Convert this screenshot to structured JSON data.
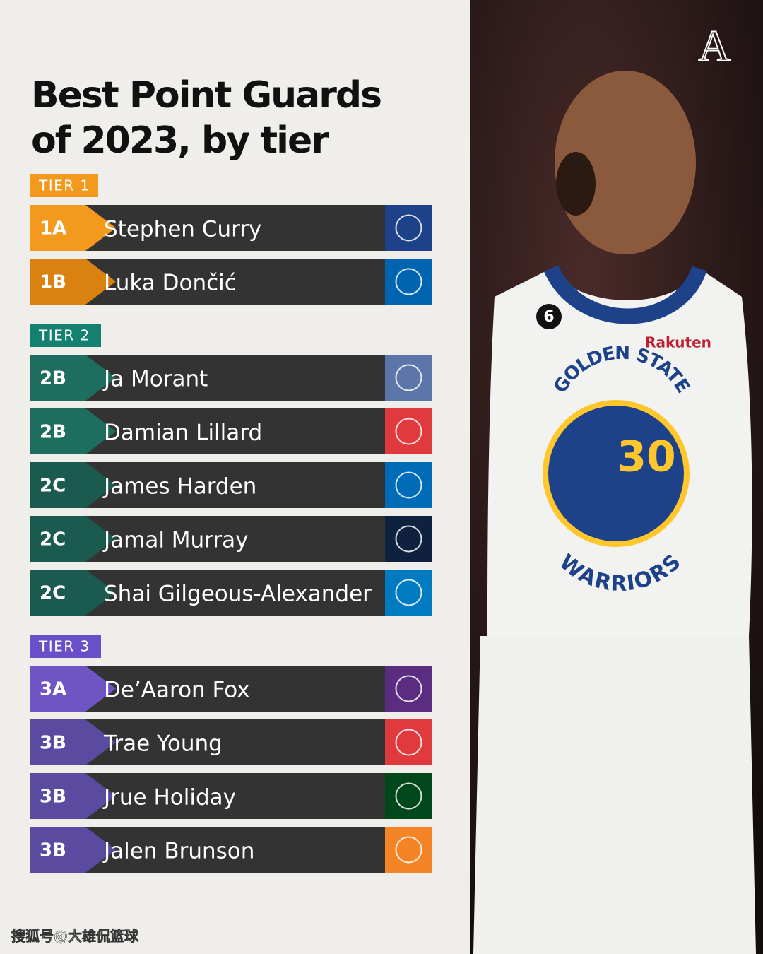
{
  "title_lines": [
    "Best Point Guards",
    "of 2023, by tier"
  ],
  "brand": "A",
  "tiers": [
    {
      "label": "TIER 1",
      "color": "#f39a1e",
      "rows": [
        {
          "rank": "1A",
          "name": "Stephen Curry",
          "rank_color": "#f39a1e",
          "logo_color": "#1d428a"
        },
        {
          "rank": "1B",
          "name": "Luka Dončić",
          "rank_color": "#d9820f",
          "logo_color": "#0064b1"
        }
      ]
    },
    {
      "label": "TIER 2",
      "color": "#14806f",
      "rows": [
        {
          "rank": "2B",
          "name": "Ja Morant",
          "rank_color": "#1e6e5f",
          "logo_color": "#5d76a9"
        },
        {
          "rank": "2B",
          "name": "Damian Lillard",
          "rank_color": "#1e6e5f",
          "logo_color": "#e03a3e"
        },
        {
          "rank": "2C",
          "name": "James Harden",
          "rank_color": "#1a5a4f",
          "logo_color": "#006bb6"
        },
        {
          "rank": "2C",
          "name": "Jamal Murray",
          "rank_color": "#1a5a4f",
          "logo_color": "#0e2240"
        },
        {
          "rank": "2C",
          "name": "Shai Gilgeous-Alexander",
          "rank_color": "#1a5a4f",
          "logo_color": "#007ac1"
        }
      ]
    },
    {
      "label": "TIER 3",
      "color": "#6a50c8",
      "rows": [
        {
          "rank": "3A",
          "name": "De’Aaron Fox",
          "rank_color": "#6f55c4",
          "logo_color": "#5a2d81"
        },
        {
          "rank": "3B",
          "name": "Trae Young",
          "rank_color": "#5a4aa0",
          "logo_color": "#e03a3e"
        },
        {
          "rank": "3B",
          "name": "Jrue Holiday",
          "rank_color": "#5a4aa0",
          "logo_color": "#00471b"
        },
        {
          "rank": "3B",
          "name": "Jalen Brunson",
          "rank_color": "#5a4aa0",
          "logo_color": "#f58426"
        }
      ]
    }
  ],
  "photo": {
    "number": "30",
    "patch": "6",
    "sponsor": "Rakuten",
    "arc_top": "GOLDEN STATE",
    "arc_bottom": "WARRIORS"
  },
  "watermark": "搜狐号@大雄侃篮球"
}
